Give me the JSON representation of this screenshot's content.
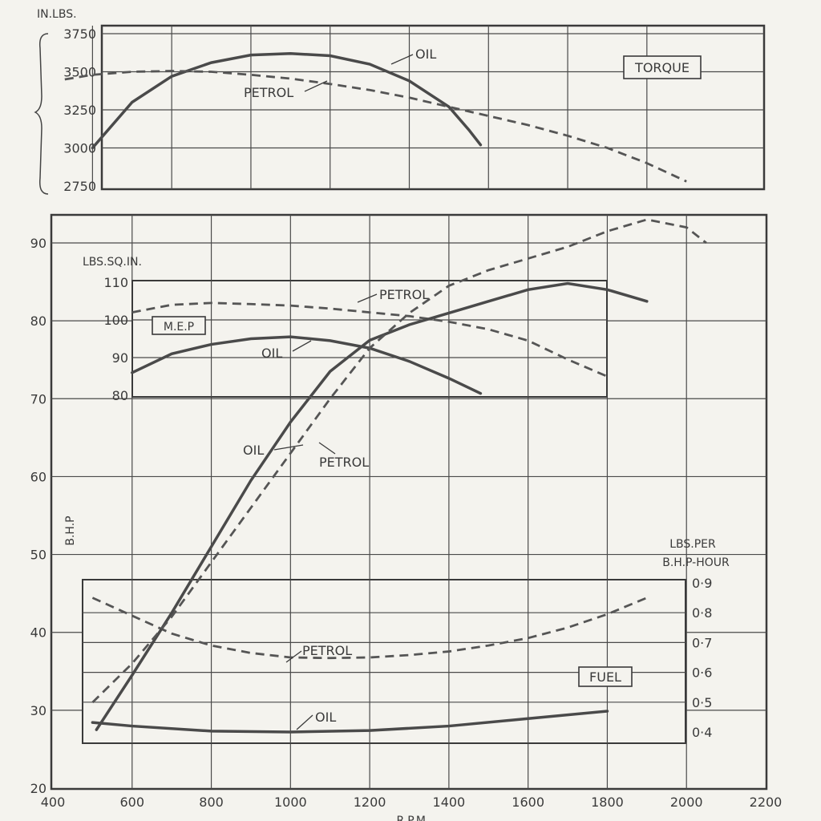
{
  "chart_data": [
    {
      "id": "torque",
      "type": "line",
      "title": "TORQUE",
      "ylabel": "IN.LBS.",
      "xlim": [
        500,
        2100
      ],
      "ylim": [
        2750,
        3750
      ],
      "yticks": [
        "3750",
        "3500",
        "3250",
        "3000",
        "2750"
      ],
      "series": [
        {
          "name": "OIL",
          "style": "solid",
          "x": [
            500,
            600,
            700,
            800,
            900,
            1000,
            1100,
            1200,
            1300,
            1400,
            1450,
            1480
          ],
          "y": [
            3000,
            3300,
            3470,
            3560,
            3610,
            3620,
            3605,
            3550,
            3440,
            3270,
            3120,
            3020
          ]
        },
        {
          "name": "PETROL",
          "style": "dashed",
          "x": [
            430,
            500,
            600,
            700,
            800,
            900,
            1000,
            1100,
            1200,
            1300,
            1400,
            1500,
            1600,
            1700,
            1800,
            1900,
            2000
          ],
          "y": [
            3450,
            3480,
            3500,
            3505,
            3500,
            3480,
            3455,
            3420,
            3380,
            3330,
            3270,
            3210,
            3150,
            3080,
            3000,
            2900,
            2780
          ]
        }
      ]
    },
    {
      "id": "bhp",
      "type": "line",
      "ylabel": "B.H.P",
      "xlabel": "R.P.M.",
      "xlim": [
        400,
        2200
      ],
      "ylim": [
        20,
        92
      ],
      "xticks": [
        "400",
        "600",
        "800",
        "1000",
        "1200",
        "1400",
        "1600",
        "1800",
        "2000",
        "2200"
      ],
      "yticks": [
        "90",
        "80",
        "70",
        "60",
        "50",
        "40",
        "30",
        "20"
      ],
      "series": [
        {
          "name": "OIL",
          "style": "solid",
          "x": [
            510,
            600,
            700,
            800,
            900,
            1000,
            1100,
            1200,
            1300,
            1400,
            1500,
            1600,
            1700,
            1800,
            1900
          ],
          "y": [
            27.5,
            34.5,
            42.5,
            51,
            59.5,
            67,
            73.5,
            77.5,
            79.5,
            81,
            82.5,
            84,
            84.8,
            84,
            82.5
          ]
        },
        {
          "name": "PETROL",
          "style": "dashed",
          "x": [
            500,
            600,
            700,
            800,
            900,
            1000,
            1100,
            1200,
            1300,
            1400,
            1500,
            1600,
            1700,
            1800,
            1900,
            2000,
            2050
          ],
          "y": [
            31,
            36,
            42,
            49,
            56,
            63,
            70,
            76.5,
            81,
            84.5,
            86.5,
            88,
            89.5,
            91.5,
            93,
            92,
            90
          ]
        }
      ],
      "annotations": {
        "oil": "OIL",
        "petrol": "PETROL"
      }
    },
    {
      "id": "mep",
      "type": "line",
      "title": "M.E.P",
      "ylabel": "LBS.SQ.IN.",
      "xlim": [
        600,
        1800
      ],
      "ylim": [
        80,
        110
      ],
      "yticks": [
        "110",
        "100",
        "90",
        "80"
      ],
      "series": [
        {
          "name": "OIL",
          "style": "solid",
          "x": [
            600,
            700,
            800,
            900,
            1000,
            1100,
            1200,
            1300,
            1400,
            1480
          ],
          "y": [
            86,
            91,
            93.5,
            95,
            95.5,
            94.5,
            92.5,
            89,
            84.5,
            80.5
          ]
        },
        {
          "name": "PETROL",
          "style": "dashed",
          "x": [
            600,
            700,
            800,
            900,
            1000,
            1100,
            1200,
            1300,
            1400,
            1500,
            1600,
            1700,
            1800
          ],
          "y": [
            102,
            104,
            104.5,
            104.2,
            103.8,
            103,
            102,
            101,
            99.5,
            97.5,
            94.5,
            89.5,
            85
          ]
        }
      ]
    },
    {
      "id": "fuel",
      "type": "line",
      "title": "FUEL",
      "ylabel": "LBS.PER B.H.P-HOUR",
      "ylabel_lines": [
        "LBS.PER",
        "B.H.P-HOUR"
      ],
      "xlim": [
        400,
        2000
      ],
      "ylim": [
        0.35,
        0.95
      ],
      "yticks": [
        "0·9",
        "0·8",
        "0·7",
        "0·6",
        "0·5",
        "0·4"
      ],
      "yticks_values": [
        0.9,
        0.8,
        0.7,
        0.6,
        0.5,
        0.4
      ],
      "series": [
        {
          "name": "OIL",
          "style": "solid",
          "x": [
            500,
            600,
            800,
            1000,
            1200,
            1400,
            1600,
            1800
          ],
          "y": [
            0.432,
            0.42,
            0.403,
            0.4,
            0.405,
            0.42,
            0.445,
            0.47
          ]
        },
        {
          "name": "PETROL",
          "style": "dashed",
          "x": [
            500,
            600,
            700,
            800,
            900,
            1000,
            1100,
            1200,
            1300,
            1400,
            1500,
            1600,
            1700,
            1800,
            1900
          ],
          "y": [
            0.85,
            0.79,
            0.73,
            0.69,
            0.665,
            0.65,
            0.648,
            0.65,
            0.658,
            0.67,
            0.69,
            0.715,
            0.75,
            0.795,
            0.85
          ]
        }
      ]
    }
  ],
  "labels": {
    "torque_unit": "IN.LBS.",
    "torque_title": "TORQUE",
    "torque_oil": "OIL",
    "torque_petrol": "PETROL",
    "mep_unit": "LBS.SQ.IN.",
    "mep_title": "M.E.P",
    "mep_oil": "OIL",
    "mep_petrol": "PETROL",
    "bhp_axis": "B.H.P",
    "bhp_oil": "OIL",
    "bhp_petrol": "PETROL",
    "fuel_title": "FUEL",
    "fuel_oil": "OIL",
    "fuel_petrol": "PETROL",
    "x_axis": "R.P.M."
  }
}
